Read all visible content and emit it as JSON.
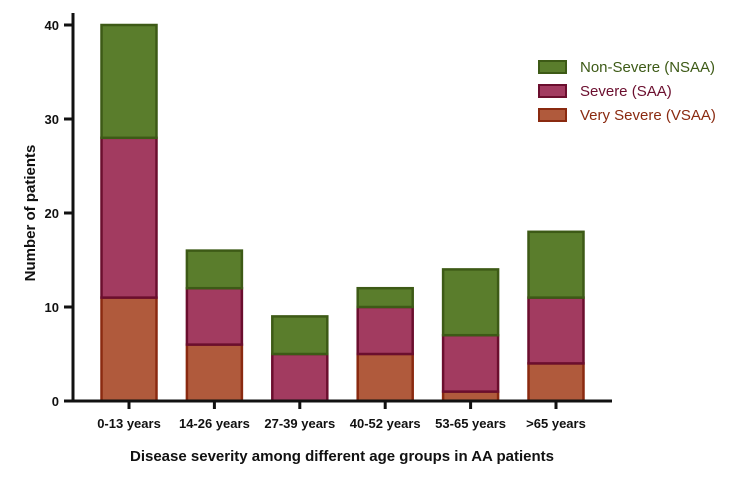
{
  "chart_data": {
    "type": "bar",
    "stacked": true,
    "title": "",
    "xlabel": "Disease severity among different age groups in AA patients",
    "ylabel": "Number of patients",
    "ylim": [
      0,
      40
    ],
    "yticks": [
      0,
      10,
      20,
      30,
      40
    ],
    "grid": false,
    "legend_position": "top-right",
    "categories": [
      "0-13 years",
      "14-26 years",
      "27-39 years",
      "40-52 years",
      "53-65 years",
      ">65 years"
    ],
    "series": [
      {
        "name": "Very Severe (VSAA)",
        "values": [
          11,
          6,
          0,
          5,
          1,
          4
        ],
        "color": "#b05a3c",
        "edge": "#8a2a10",
        "text_color": "#8a2a10"
      },
      {
        "name": "Severe (SAA)",
        "values": [
          17,
          6,
          5,
          5,
          6,
          7
        ],
        "color": "#a23b60",
        "edge": "#6b0e2e",
        "text_color": "#6b0e2e"
      },
      {
        "name": "Non-Severe (NSAA)",
        "values": [
          12,
          4,
          4,
          2,
          7,
          7
        ],
        "color": "#5a7d2c",
        "edge": "#3d5a16",
        "text_color": "#3d5a16"
      }
    ]
  }
}
